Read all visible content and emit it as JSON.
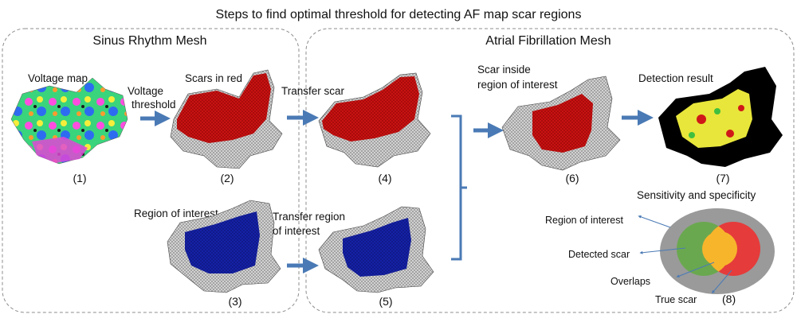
{
  "title": "Steps to find optimal threshold for detecting AF map scar regions",
  "panels": {
    "sinus": "Sinus Rhythm Mesh",
    "af": "Atrial Fibrillation Mesh"
  },
  "steps": {
    "voltage_map": "Voltage map",
    "voltage_threshold_line1": "Voltage",
    "voltage_threshold_line2": "threshold",
    "scars_in_red": "Scars in red",
    "transfer_scar": "Transfer scar",
    "scar_inside_line1": "Scar inside",
    "scar_inside_line2": "region of interest",
    "detection_result": "Detection result",
    "region_of_interest": "Region of interest",
    "transfer_roi_line1": "Transfer region",
    "transfer_roi_line2": "of interest",
    "sens_spec": "Sensitivity and specificity"
  },
  "numbers": {
    "n1": "(1)",
    "n2": "(2)",
    "n3": "(3)",
    "n4": "(4)",
    "n5": "(5)",
    "n6": "(6)",
    "n7": "(7)",
    "n8": "(8)"
  },
  "venn": {
    "roi": "Region of interest",
    "detected": "Detected scar",
    "overlaps": "Overlaps",
    "true_scar": "True scar"
  },
  "colors": {
    "panel_border": "#8c8c8c",
    "arrow": "#4a7ab5",
    "scar_red": "#cc1414",
    "roi_blue": "#1420a8",
    "mesh_gray": "#b4b4b4",
    "venn_roi": "#9a9a9a",
    "venn_detected": "#6aa84f",
    "venn_true": "#e53b3b",
    "venn_overlap": "#f7b52c",
    "detection_yellow": "#e8e63a"
  }
}
